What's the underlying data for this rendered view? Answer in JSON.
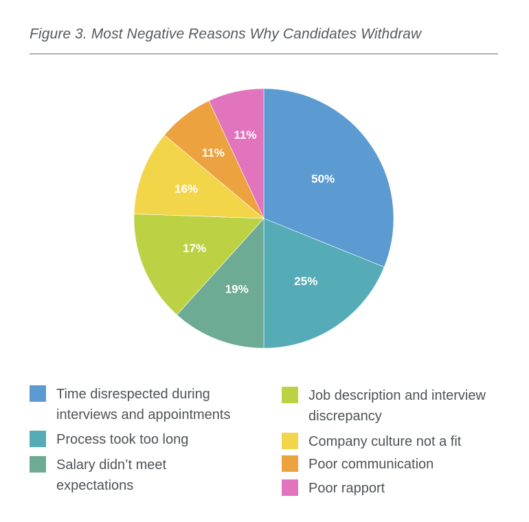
{
  "chart_data": {
    "type": "pie",
    "title": "Figure 3. Most Negative Reasons Why Candidates Withdraw",
    "slices": [
      {
        "label": "Time disrespected during interviews and appointments",
        "value_label": "50%",
        "value": 50,
        "visual_share_deg": 112,
        "color": "#5b9bd1"
      },
      {
        "label": "Process took too long",
        "value_label": "25%",
        "value": 25,
        "visual_share_deg": 68,
        "color": "#55acb6"
      },
      {
        "label": "Salary didn’t meet expectations",
        "value_label": "19%",
        "value": 19,
        "visual_share_deg": 42,
        "color": "#6eab94"
      },
      {
        "label": "Job description and interview discrepancy",
        "value_label": "17%",
        "value": 17,
        "visual_share_deg": 50,
        "color": "#bcd244"
      },
      {
        "label": "Company culture not a fit",
        "value_label": "16%",
        "value": 16,
        "visual_share_deg": 38,
        "color": "#f3d54a"
      },
      {
        "label": "Poor communication",
        "value_label": "11%",
        "value": 11,
        "visual_share_deg": 25,
        "color": "#eca23f"
      },
      {
        "label": "Poor rapport",
        "value_label": "11%",
        "value": 11,
        "visual_share_deg": 25,
        "color": "#e274bd"
      }
    ],
    "legend_position": "bottom",
    "start_angle": "12 o'clock",
    "direction": "clockwise"
  },
  "legend": [
    {
      "label": "Time disrespected during interviews and appointments",
      "color": "#5b9bd1"
    },
    {
      "label": "Process took too long",
      "color": "#55acb6"
    },
    {
      "label": "Salary didn’t meet expectations",
      "color": "#6eab94"
    },
    {
      "label": "Job description and interview discrepancy",
      "color": "#bcd244"
    },
    {
      "label": "Company culture not a fit",
      "color": "#f3d54a"
    },
    {
      "label": "Poor communication",
      "color": "#eca23f"
    },
    {
      "label": "Poor rapport",
      "color": "#e274bd"
    }
  ]
}
